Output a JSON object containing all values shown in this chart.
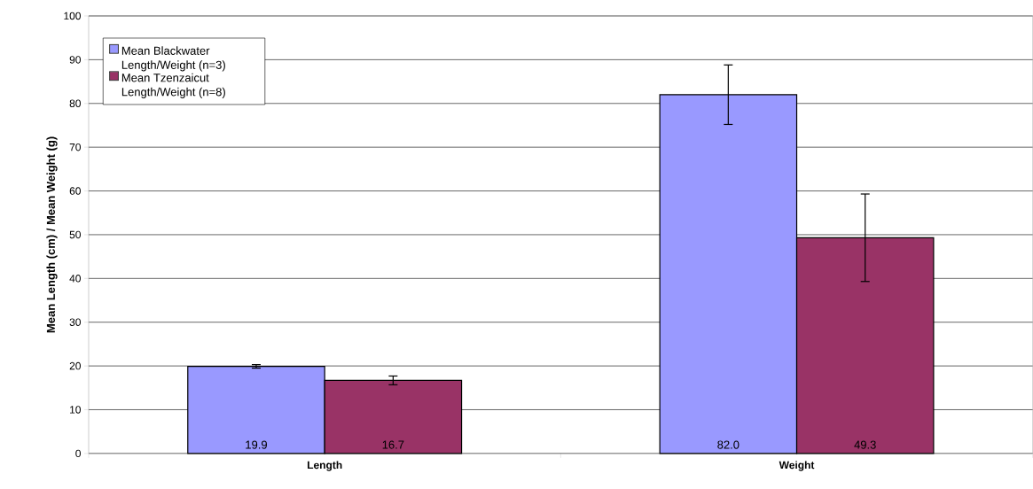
{
  "chart_data": {
    "type": "bar",
    "ylabel": "Mean Length (cm) / Mean Weight (g)",
    "categories": [
      "Length",
      "Weight"
    ],
    "series": [
      {
        "name": "Mean Blackwater Length/Weight (n=3)",
        "color": "#9999ff",
        "values": [
          19.9,
          82.0
        ],
        "errors": [
          0.4,
          6.8
        ],
        "value_labels": [
          "19.9",
          "82.0"
        ]
      },
      {
        "name": "Mean Tzenzaicut Length/Weight (n=8)",
        "color": "#993366",
        "values": [
          16.7,
          49.3
        ],
        "errors": [
          1.0,
          10.0
        ],
        "value_labels": [
          "16.7",
          "49.3"
        ]
      }
    ],
    "ylim": [
      0,
      100
    ],
    "yticks": [
      0,
      10,
      20,
      30,
      40,
      50,
      60,
      70,
      80,
      90,
      100
    ],
    "grid": "y",
    "legend": "top left"
  }
}
